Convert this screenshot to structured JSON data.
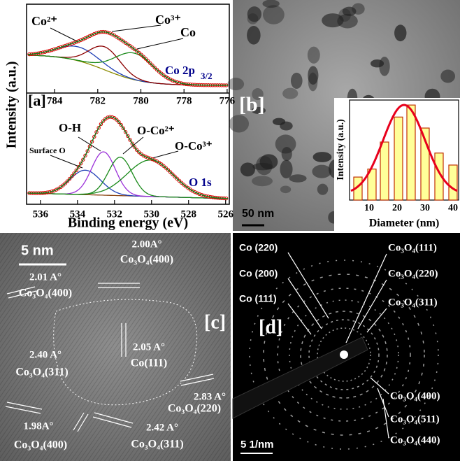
{
  "panels": {
    "a": {
      "label": "[a]",
      "y_label": "Intensity (a.u.)",
      "x_label": "Binding energy (eV)",
      "co2p": {
        "xlim": [
          785.3,
          775.9
        ],
        "xticks": [
          784,
          782,
          780,
          778,
          776
        ],
        "title": "Co 2p",
        "title_sub": "3/2",
        "peaks": [
          "Co²⁺",
          "Co³⁺",
          "Co"
        ]
      },
      "o1s": {
        "xlim": [
          536.75,
          525.8
        ],
        "xticks": [
          536,
          534,
          532,
          530,
          528,
          526
        ],
        "title": "O 1s",
        "peaks": [
          "Surface O",
          "O-H",
          "O-Co²⁺",
          "O-Co³⁺"
        ]
      }
    },
    "b": {
      "label": "[b]",
      "scale_bar": "50 nm"
    },
    "c": {
      "label": "[c]",
      "scale_bar": "5 nm",
      "annotations": [
        {
          "spacing": "2.00A°",
          "plane": "Co₃O₄(400)"
        },
        {
          "spacing": "2.01 A°",
          "plane": "Co₃O₄(400)"
        },
        {
          "spacing": "2.05 A°",
          "plane": "Co(111)"
        },
        {
          "spacing": "2.40 A°",
          "plane": "Co₃O₄(311)"
        },
        {
          "spacing": "2.83 A°",
          "plane": "Co₃O₄(220)"
        },
        {
          "spacing": "1.98A°",
          "plane": "Co₃O₄(400)"
        },
        {
          "spacing": "2.42 A°",
          "plane": "Co₃O₄(311)"
        }
      ]
    },
    "d": {
      "label": "[d]",
      "scale_bar": "5 1/nm",
      "left_rings": [
        "Co (220)",
        "Co (200)",
        "Co (111)"
      ],
      "right_rings": [
        "Co₃O₄(111)",
        "Co₃O₄(220)",
        "Co₃O₄(311)",
        "Co₃O₄(400)",
        "Co₃O₄(511)",
        "Co₃O₄(440)"
      ]
    }
  },
  "chart_data": {
    "type": "bar",
    "x": [
      6,
      11,
      15.5,
      20.5,
      25,
      30,
      35,
      40
    ],
    "values": [
      0.23,
      0.31,
      0.58,
      0.83,
      0.95,
      0.72,
      0.47,
      0.35
    ],
    "xlim": [
      3,
      42
    ],
    "xticks": [
      10,
      20,
      30,
      40
    ],
    "ylim": [
      0,
      1
    ],
    "x_label": "Diameter (nm)",
    "y_label": "Intensity (a.u.)",
    "color": "#ffff99",
    "fit_color": "#e8001c"
  }
}
